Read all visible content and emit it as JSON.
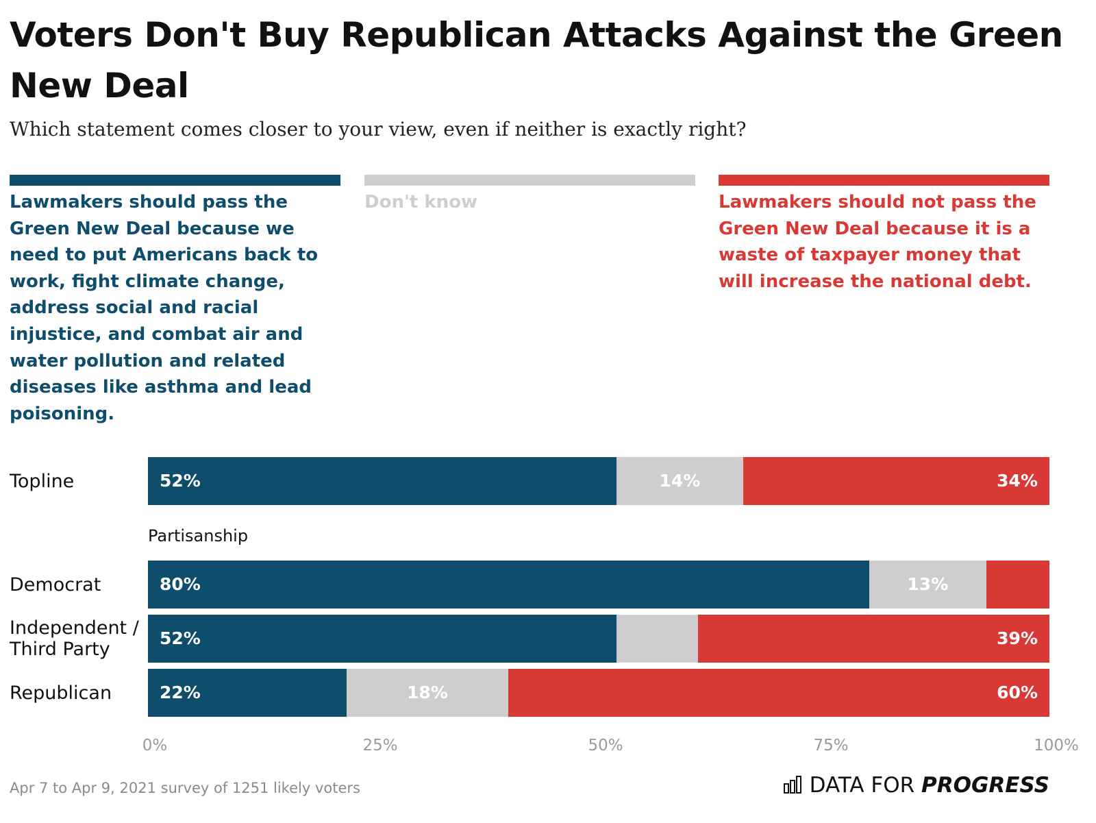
{
  "chart_data": {
    "type": "stacked_bar_horizontal",
    "title": "Voters Don't Buy Republican Attacks Against the Green New Deal",
    "subtitle": "Which statement comes closer to your view, even if neither is exactly right?",
    "categories": [
      "Topline",
      "Democrat",
      "Independent / Third Party",
      "Republican"
    ],
    "group_label": "Partisanship",
    "series": [
      {
        "name": "Lawmakers should pass the Green New Deal because we need to put Americans back to work, fight climate change, address social and racial injustice, and combat air and water pollution and related diseases like asthma and lead poisoning.",
        "color": "#0f4d6c",
        "values": [
          52,
          80,
          52,
          22
        ],
        "value_labels": [
          "52%",
          "80%",
          "52%",
          "22%"
        ]
      },
      {
        "name": "Don't know",
        "color": "#d0cdd0",
        "values": [
          14,
          13,
          9,
          18
        ],
        "value_labels": [
          "14%",
          "13%",
          null,
          "18%"
        ]
      },
      {
        "name": "Lawmakers should not pass the Green New Deal because it is a waste of taxpayer money that will increase the national debt.",
        "color": "#d93935",
        "values": [
          34,
          7,
          39,
          60
        ],
        "value_labels": [
          "34%",
          null,
          "39%",
          "60%"
        ]
      }
    ],
    "xlim": [
      0,
      100
    ],
    "xticks": [
      {
        "value": 0,
        "label": "0%"
      },
      {
        "value": 25,
        "label": "25%"
      },
      {
        "value": 50,
        "label": "50%"
      },
      {
        "value": 75,
        "label": "75%"
      },
      {
        "value": 100,
        "label": "100%"
      }
    ],
    "grid": false,
    "note": "Apr 7 to Apr 9, 2021 survey of 1251 likely voters",
    "source": {
      "prefix": "DATA FOR",
      "emphasis": "PROGRESS"
    }
  }
}
